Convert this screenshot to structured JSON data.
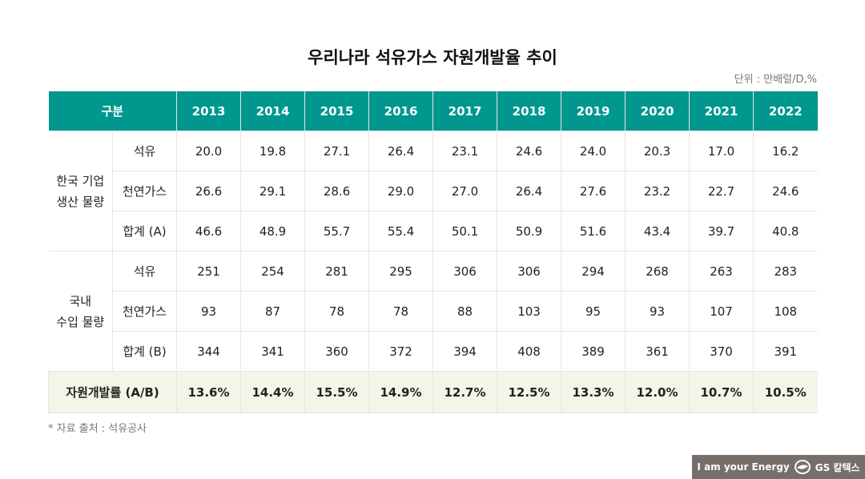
{
  "title": "우리나라 석유가스 자원개발율 추이",
  "unit": "단위 : 만배럴/D,%",
  "header": {
    "label": "구분",
    "years": [
      "2013",
      "2014",
      "2015",
      "2016",
      "2017",
      "2018",
      "2019",
      "2020",
      "2021",
      "2022"
    ]
  },
  "groups": [
    {
      "label": "한국 기업\n생산 물량",
      "rows": [
        {
          "label": "석유",
          "values": [
            "20.0",
            "19.8",
            "27.1",
            "26.4",
            "23.1",
            "24.6",
            "24.0",
            "20.3",
            "17.0",
            "16.2"
          ]
        },
        {
          "label": "천연가스",
          "values": [
            "26.6",
            "29.1",
            "28.6",
            "29.0",
            "27.0",
            "26.4",
            "27.6",
            "23.2",
            "22.7",
            "24.6"
          ]
        },
        {
          "label": "합계 (A)",
          "values": [
            "46.6",
            "48.9",
            "55.7",
            "55.4",
            "50.1",
            "50.9",
            "51.6",
            "43.4",
            "39.7",
            "40.8"
          ]
        }
      ]
    },
    {
      "label": "국내\n수입 물량",
      "rows": [
        {
          "label": "석유",
          "values": [
            "251",
            "254",
            "281",
            "295",
            "306",
            "306",
            "294",
            "268",
            "263",
            "283"
          ]
        },
        {
          "label": "천연가스",
          "values": [
            "93",
            "87",
            "78",
            "78",
            "88",
            "103",
            "95",
            "93",
            "107",
            "108"
          ]
        },
        {
          "label": "합계 (B)",
          "values": [
            "344",
            "341",
            "360",
            "372",
            "394",
            "408",
            "389",
            "361",
            "370",
            "391"
          ]
        }
      ]
    }
  ],
  "ratio": {
    "label": "자원개발률 (A/B)",
    "values": [
      "13.6%",
      "14.4%",
      "15.5%",
      "14.9%",
      "12.7%",
      "12.5%",
      "13.3%",
      "12.0%",
      "10.7%",
      "10.5%"
    ]
  },
  "source": "* 자료 출처 : 석유공사",
  "footer": {
    "slogan": "I am your Energy",
    "brand": "GS 칼텍스",
    "logo_icon": "gs-caltex-logo-icon"
  },
  "colors": {
    "header": "#00978f",
    "ratio_row": "#f1f6e9",
    "footer": "#756f6c"
  }
}
